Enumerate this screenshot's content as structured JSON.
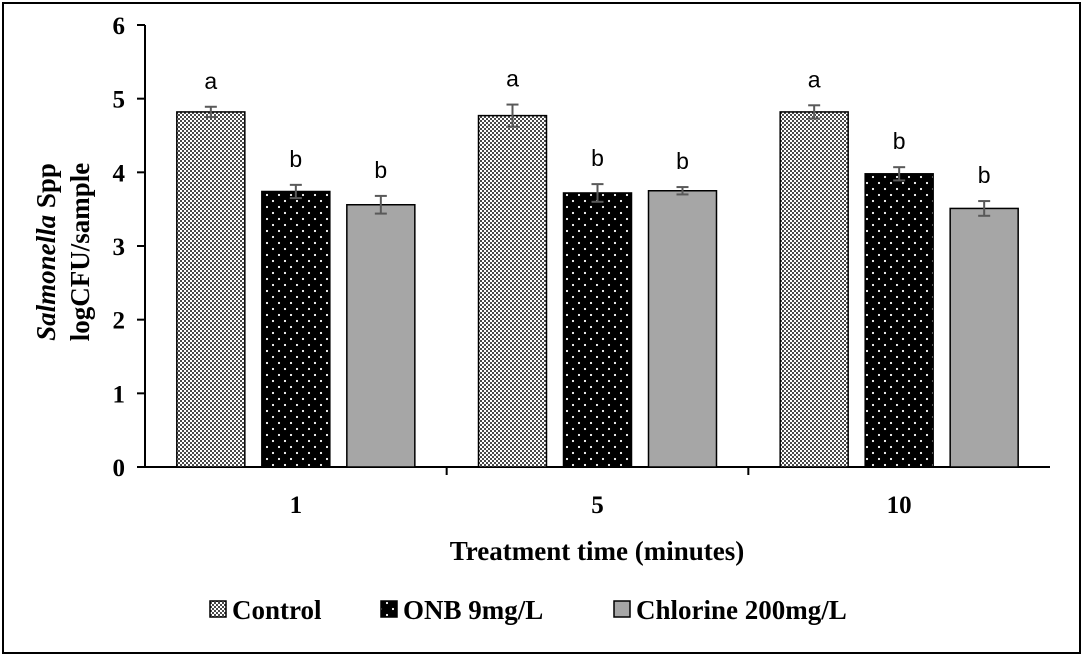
{
  "chart_data": {
    "type": "bar",
    "title": "",
    "xlabel": "Treatment time (minutes)",
    "ylabel_italic": "Salmonella",
    "ylabel_rest": " Spp",
    "ylabel_line2": "logCFU/sample",
    "categories": [
      "1",
      "5",
      "10"
    ],
    "ylim": [
      0,
      6
    ],
    "yticks": [
      "0",
      "1",
      "2",
      "3",
      "4",
      "5",
      "6"
    ],
    "series": [
      {
        "name": "Control",
        "values": [
          4.82,
          4.77,
          4.82
        ],
        "errors": [
          0.07,
          0.15,
          0.09
        ],
        "labels": [
          "a",
          "a",
          "a"
        ],
        "pattern": "fine-checker",
        "color": "#e8e8e8"
      },
      {
        "name": "ONB 9mg/L",
        "values": [
          3.74,
          3.72,
          3.98
        ],
        "errors": [
          0.09,
          0.12,
          0.09
        ],
        "labels": [
          "b",
          "b",
          "b"
        ],
        "pattern": "white-dots-on-black",
        "color": "#000000"
      },
      {
        "name": "Chlorine 200mg/L",
        "values": [
          3.56,
          3.75,
          3.51
        ],
        "errors": [
          0.12,
          0.05,
          0.1
        ],
        "labels": [
          "b",
          "b",
          "b"
        ],
        "pattern": "solid",
        "color": "#a6a6a6"
      }
    ],
    "legend_position": "bottom",
    "grid": false
  }
}
